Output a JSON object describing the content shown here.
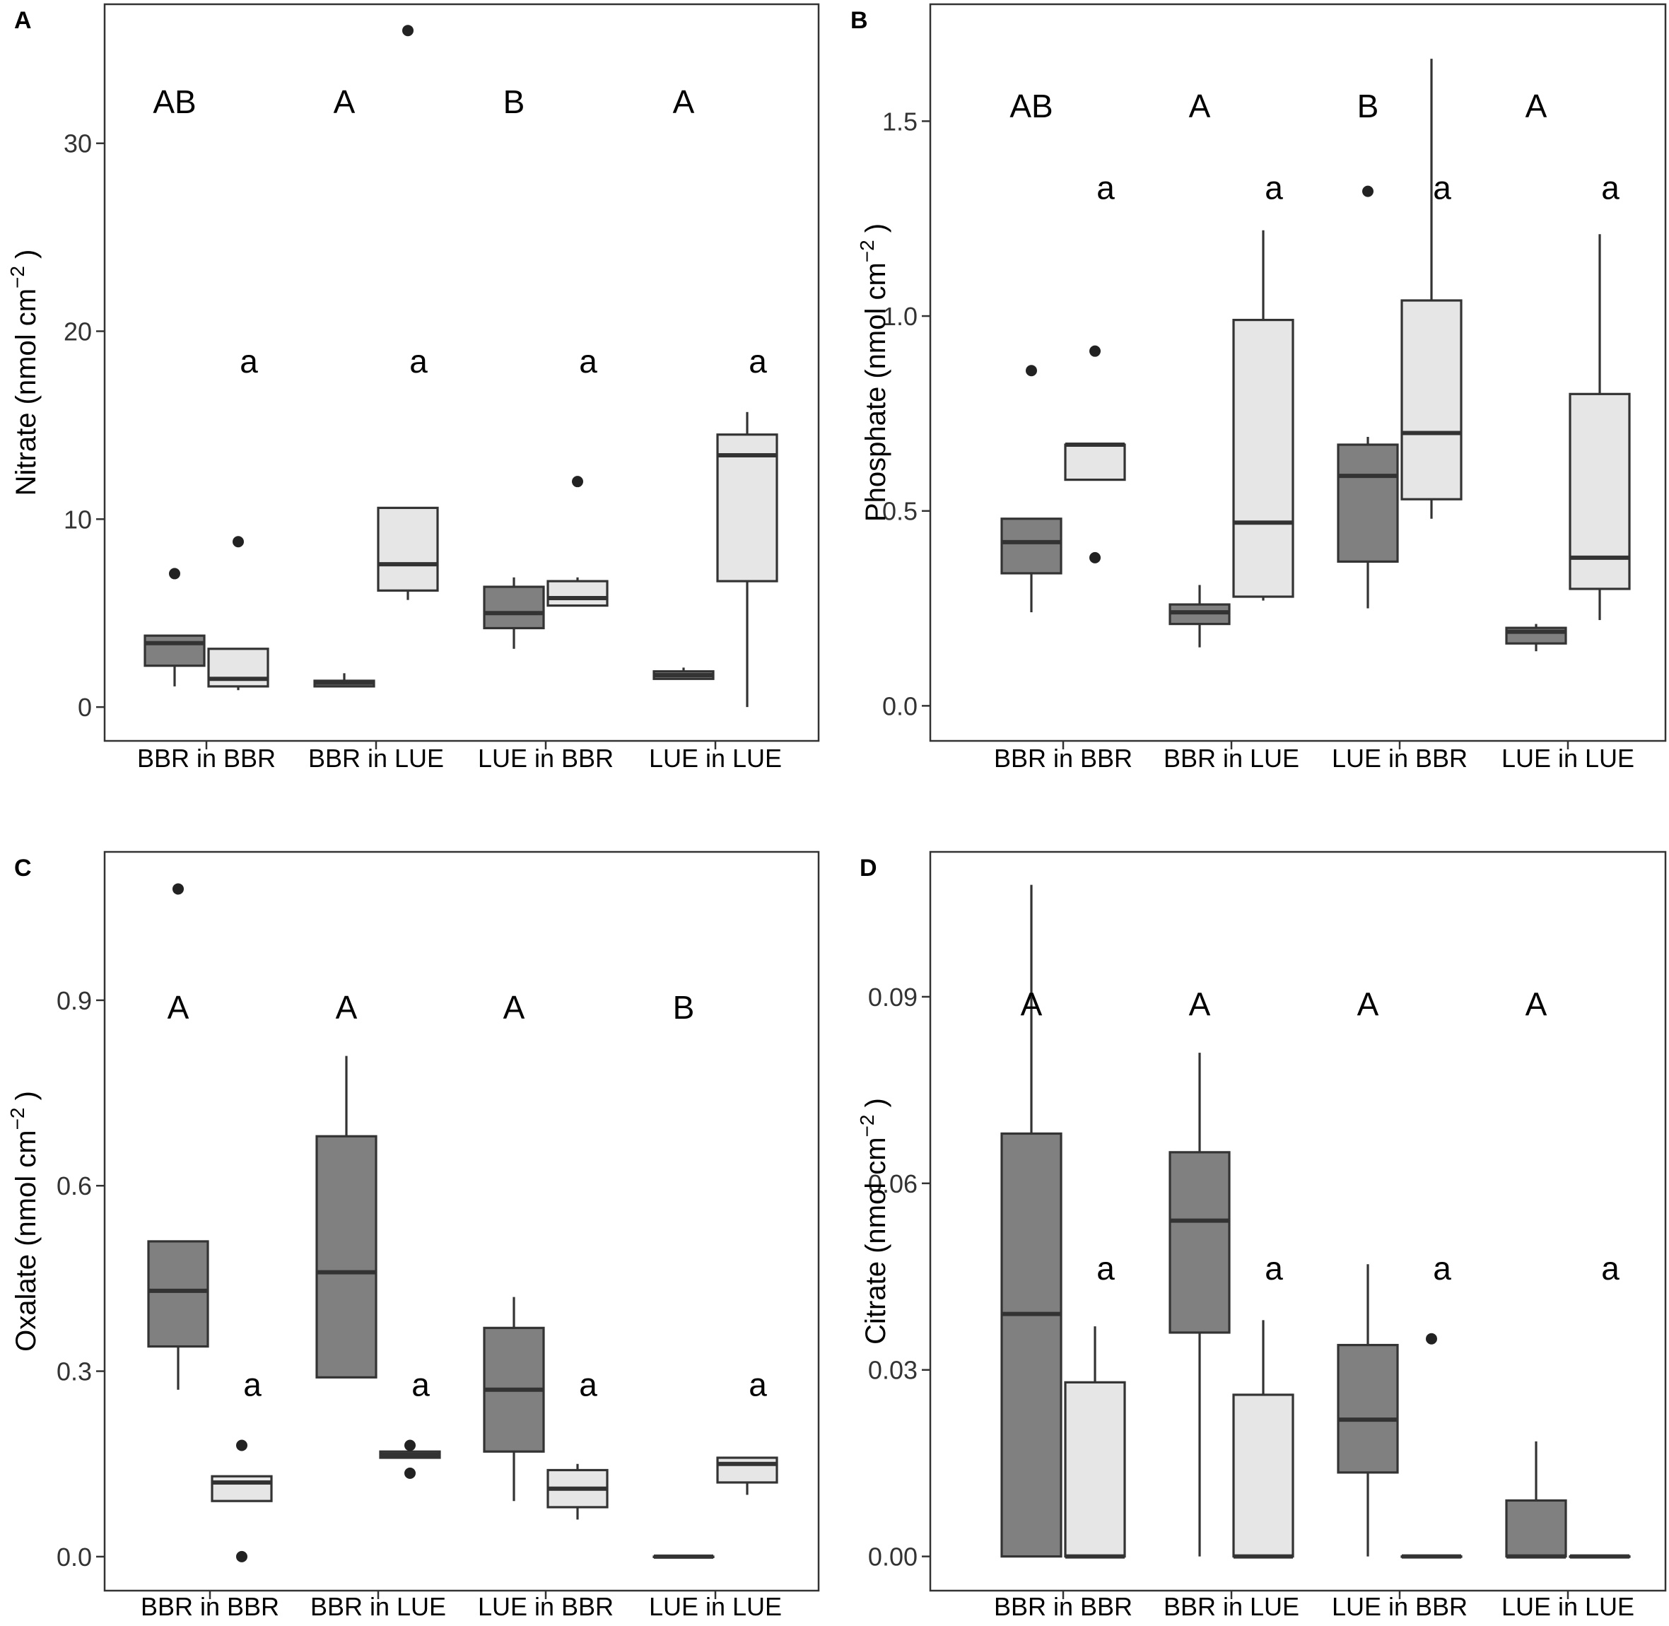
{
  "chart_data": [
    {
      "type": "box",
      "panel": "A",
      "ylabel_main": "Nitrate (nmol cm",
      "ylabel_exp": "−2",
      "ylabel_close": ")",
      "ylim": [
        -1.8,
        37.4
      ],
      "yticks": [
        0,
        10,
        20,
        30
      ],
      "ytick_labels": [
        "0",
        "10",
        "20",
        "30"
      ],
      "categories": [
        "BBR in BBR",
        "BBR in LUE",
        "LUE in BBR",
        "LUE in LUE"
      ],
      "upper_letters": [
        "AB",
        "A",
        "B",
        "A"
      ],
      "upper_letter_y": 31.6,
      "lower_letters": [
        "a",
        "a",
        "a",
        "a"
      ],
      "lower_letter_y": 17.8,
      "series": [
        {
          "name": "dark",
          "boxes": [
            {
              "min": 1.1,
              "q1": 2.2,
              "median": 3.4,
              "q3": 3.8,
              "max": 3.8,
              "outliers": [
                7.1
              ]
            },
            {
              "min": 1.1,
              "q1": 1.1,
              "median": 1.3,
              "q3": 1.4,
              "max": 1.8,
              "outliers": []
            },
            {
              "min": 3.1,
              "q1": 4.2,
              "median": 5.0,
              "q3": 6.4,
              "max": 6.9,
              "outliers": []
            },
            {
              "min": 1.5,
              "q1": 1.5,
              "median": 1.7,
              "q3": 1.9,
              "max": 2.1,
              "outliers": []
            }
          ]
        },
        {
          "name": "light",
          "boxes": [
            {
              "min": 0.9,
              "q1": 1.1,
              "median": 1.5,
              "q3": 3.1,
              "max": 3.1,
              "outliers": [
                8.8
              ]
            },
            {
              "min": 5.7,
              "q1": 6.2,
              "median": 7.6,
              "q3": 10.6,
              "max": 10.6,
              "outliers": [
                36.0
              ]
            },
            {
              "min": 5.4,
              "q1": 5.4,
              "median": 5.8,
              "q3": 6.7,
              "max": 6.9,
              "outliers": [
                12.0
              ]
            },
            {
              "min": 0.0,
              "q1": 6.7,
              "median": 13.4,
              "q3": 14.5,
              "max": 15.7,
              "outliers": []
            }
          ]
        }
      ]
    },
    {
      "type": "box",
      "panel": "B",
      "ylabel_main": "Phosphate (nmol cm",
      "ylabel_exp": "−2",
      "ylabel_close": ")",
      "ylim": [
        -0.09,
        1.8
      ],
      "yticks": [
        0.0,
        0.5,
        1.0,
        1.5
      ],
      "ytick_labels": [
        "0.0",
        "0.5",
        "1.0",
        "1.5"
      ],
      "categories": [
        "BBR in BBR",
        "BBR in LUE",
        "LUE in BBR",
        "LUE in LUE"
      ],
      "upper_letters": [
        "AB",
        "A",
        "B",
        "A"
      ],
      "upper_letter_y": 1.51,
      "lower_letters": [
        "a",
        "a",
        "a",
        "a"
      ],
      "lower_letter_y": 1.3,
      "series": [
        {
          "name": "dark",
          "boxes": [
            {
              "min": 0.24,
              "q1": 0.34,
              "median": 0.42,
              "q3": 0.48,
              "max": 0.48,
              "outliers": [
                0.86
              ]
            },
            {
              "min": 0.15,
              "q1": 0.21,
              "median": 0.24,
              "q3": 0.26,
              "max": 0.31,
              "outliers": []
            },
            {
              "min": 0.25,
              "q1": 0.37,
              "median": 0.59,
              "q3": 0.67,
              "max": 0.69,
              "outliers": [
                1.32
              ]
            },
            {
              "min": 0.14,
              "q1": 0.16,
              "median": 0.19,
              "q3": 0.2,
              "max": 0.21,
              "outliers": []
            }
          ]
        },
        {
          "name": "light",
          "boxes": [
            {
              "min": 0.58,
              "q1": 0.58,
              "median": 0.67,
              "q3": 0.67,
              "max": 0.67,
              "outliers": [
                0.91,
                0.38
              ]
            },
            {
              "min": 0.27,
              "q1": 0.28,
              "median": 0.47,
              "q3": 0.99,
              "max": 1.22,
              "outliers": []
            },
            {
              "min": 0.48,
              "q1": 0.53,
              "median": 0.7,
              "q3": 1.04,
              "max": 1.66,
              "outliers": []
            },
            {
              "min": 0.22,
              "q1": 0.3,
              "median": 0.38,
              "q3": 0.8,
              "max": 1.21,
              "outliers": []
            }
          ]
        }
      ]
    },
    {
      "type": "box",
      "panel": "C",
      "ylabel_main": "Oxalate (nmol cm",
      "ylabel_exp": "−2",
      "ylabel_close": ")",
      "ylim": [
        -0.055,
        1.14
      ],
      "yticks": [
        0.0,
        0.3,
        0.6,
        0.9
      ],
      "ytick_labels": [
        "0.0",
        "0.3",
        "0.6",
        "0.9"
      ],
      "categories": [
        "BBR in BBR",
        "BBR in LUE",
        "LUE in BBR",
        "LUE in LUE"
      ],
      "upper_letters": [
        "A",
        "A",
        "A",
        "B"
      ],
      "upper_letter_y": 0.87,
      "lower_letters": [
        "a",
        "a",
        "a",
        "a"
      ],
      "lower_letter_y": 0.26,
      "series": [
        {
          "name": "dark",
          "boxes": [
            {
              "min": 0.27,
              "q1": 0.34,
              "median": 0.43,
              "q3": 0.51,
              "max": 0.51,
              "outliers": [
                1.08
              ]
            },
            {
              "min": 0.29,
              "q1": 0.29,
              "median": 0.46,
              "q3": 0.68,
              "max": 0.81,
              "outliers": []
            },
            {
              "min": 0.09,
              "q1": 0.17,
              "median": 0.27,
              "q3": 0.37,
              "max": 0.42,
              "outliers": []
            },
            {
              "min": 0.0,
              "q1": 0.0,
              "median": 0.0,
              "q3": 0.0,
              "max": 0.0,
              "outliers": []
            }
          ]
        },
        {
          "name": "light",
          "boxes": [
            {
              "min": 0.09,
              "q1": 0.09,
              "median": 0.12,
              "q3": 0.13,
              "max": 0.13,
              "outliers": [
                0.18,
                0.0
              ]
            },
            {
              "min": 0.16,
              "q1": 0.16,
              "median": 0.165,
              "q3": 0.17,
              "max": 0.17,
              "outliers": [
                0.18,
                0.135
              ]
            },
            {
              "min": 0.06,
              "q1": 0.08,
              "median": 0.11,
              "q3": 0.14,
              "max": 0.15,
              "outliers": []
            },
            {
              "min": 0.1,
              "q1": 0.12,
              "median": 0.15,
              "q3": 0.16,
              "max": 0.16,
              "outliers": []
            }
          ]
        }
      ]
    },
    {
      "type": "box",
      "panel": "D",
      "ylabel_main": "Citrate (nmol cm",
      "ylabel_exp": "−2",
      "ylabel_close": ")",
      "ylim": [
        -0.0055,
        0.1133
      ],
      "yticks": [
        0.0,
        0.03,
        0.06,
        0.09
      ],
      "ytick_labels": [
        "0.00",
        "0.03",
        "0.06",
        "0.09"
      ],
      "categories": [
        "BBR in BBR",
        "BBR in LUE",
        "LUE in BBR",
        "LUE in LUE"
      ],
      "upper_letters": [
        "A",
        "A",
        "A",
        "A"
      ],
      "upper_letter_y": 0.087,
      "lower_letters": [
        "a",
        "a",
        "a",
        "a"
      ],
      "lower_letter_y": 0.0445,
      "series": [
        {
          "name": "dark",
          "boxes": [
            {
              "min": 0.0,
              "q1": 0.0,
              "median": 0.039,
              "q3": 0.068,
              "max": 0.108,
              "outliers": []
            },
            {
              "min": 0.0,
              "q1": 0.036,
              "median": 0.054,
              "q3": 0.065,
              "max": 0.081,
              "outliers": []
            },
            {
              "min": 0.0,
              "q1": 0.0135,
              "median": 0.022,
              "q3": 0.034,
              "max": 0.047,
              "outliers": []
            },
            {
              "min": 0.0,
              "q1": 0.0,
              "median": 0.0,
              "q3": 0.009,
              "max": 0.0185,
              "outliers": []
            }
          ]
        },
        {
          "name": "light",
          "boxes": [
            {
              "min": 0.0,
              "q1": 0.0,
              "median": 0.0,
              "q3": 0.028,
              "max": 0.037,
              "outliers": []
            },
            {
              "min": 0.0,
              "q1": 0.0,
              "median": 0.0,
              "q3": 0.026,
              "max": 0.038,
              "outliers": []
            },
            {
              "min": 0.0,
              "q1": 0.0,
              "median": 0.0,
              "q3": 0.0,
              "max": 0.0,
              "outliers": [
                0.035
              ]
            },
            {
              "min": 0.0,
              "q1": 0.0,
              "median": 0.0,
              "q3": 0.0,
              "max": 0.0,
              "outliers": []
            }
          ]
        }
      ]
    }
  ],
  "colors": {
    "dark_fill": "#808080",
    "light_fill": "#e6e6e6",
    "frame": "#333333",
    "outlier": "#222222",
    "text": "#000000"
  }
}
